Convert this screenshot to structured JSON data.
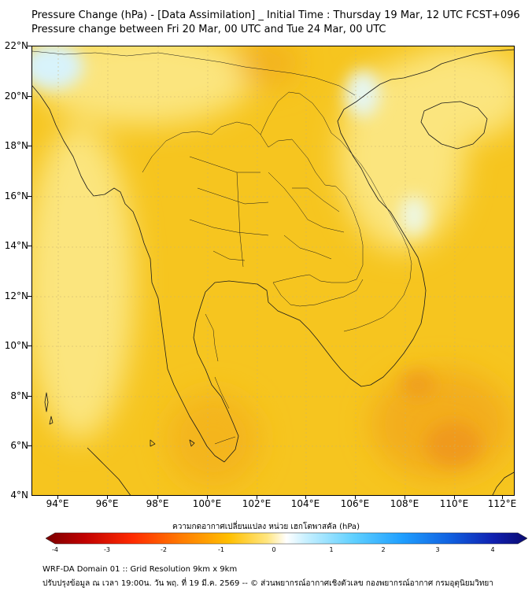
{
  "title": {
    "line1": "Pressure Change (hPa) - [Data Assimilation] _ Initial Time : Thursday 19 Mar, 12 UTC FCST+096",
    "line2": "Pressure change between Fri 20 Mar, 00 UTC and Tue 24 Mar, 00 UTC"
  },
  "axes": {
    "lat_labels": [
      "22°N",
      "20°N",
      "18°N",
      "16°N",
      "14°N",
      "12°N",
      "10°N",
      "8°N",
      "6°N",
      "4°N"
    ],
    "lon_labels": [
      "94°E",
      "96°E",
      "98°E",
      "100°E",
      "102°E",
      "104°E",
      "106°E",
      "108°E",
      "110°E",
      "112°E"
    ],
    "lat_range": [
      4,
      22
    ],
    "lon_range": [
      93,
      112.5
    ]
  },
  "colorbar": {
    "label": "ความกดอากาศเปลี่ยนแปลง หน่วย เฮกโตพาสคัล (hPa)",
    "ticks": [
      "-4",
      "-3",
      "-2",
      "-1",
      "0",
      "1",
      "2",
      "3",
      "4"
    ],
    "range": [
      -4,
      4
    ]
  },
  "footer": {
    "line1": "WRF-DA Domain 01 :: Grid Resolution 9km x 9km",
    "line2": "ปรับปรุงข้อมูล ณ เวลา 19:00น. วัน พฤ. ที่ 19 มี.ค. 2569 -- © ส่วนพยากรณ์อากาศเชิงตัวเลข กองพยากรณ์อากาศ กรมอุตุนิยมวิทยา"
  },
  "colors": {
    "field_base": "#f6c51f",
    "field_light": "#fbe57e",
    "field_orange": "#f2a51a",
    "field_cyan": "#d8f3fb",
    "boundary": "#1a1a1a"
  }
}
